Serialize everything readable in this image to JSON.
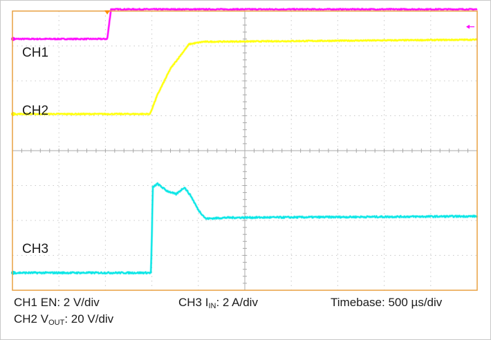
{
  "chart_data": {
    "type": "line",
    "instrument": "oscilloscope",
    "grid": {
      "x_divisions": 10,
      "y_divisions": 8,
      "subdivisions_per_division": 5
    },
    "x": {
      "unit": "µs",
      "per_division": 500,
      "range": [
        0,
        5000
      ]
    },
    "y_unit": "div",
    "y_range": [
      0,
      8
    ],
    "channel_labels": [
      "CH1",
      "CH2",
      "CH3"
    ],
    "series": [
      {
        "name": "CH1",
        "color": "#ff00ff",
        "points": [
          [
            0,
            7.2
          ],
          [
            1020,
            7.2
          ],
          [
            1025,
            7.3
          ],
          [
            1060,
            8.05
          ],
          [
            1080,
            8.05
          ],
          [
            5000,
            8.05
          ]
        ]
      },
      {
        "name": "CH2",
        "color": "#ffff00",
        "points": [
          [
            0,
            5.05
          ],
          [
            1480,
            5.05
          ],
          [
            1560,
            5.6
          ],
          [
            1700,
            6.35
          ],
          [
            1900,
            7.05
          ],
          [
            2050,
            7.12
          ],
          [
            5000,
            7.18
          ]
        ]
      },
      {
        "name": "CH3",
        "color": "#00e5e5",
        "points": [
          [
            0,
            0.5
          ],
          [
            1490,
            0.5
          ],
          [
            1500,
            1.55
          ],
          [
            1510,
            2.95
          ],
          [
            1560,
            3.05
          ],
          [
            1660,
            2.85
          ],
          [
            1760,
            2.75
          ],
          [
            1850,
            2.95
          ],
          [
            1920,
            2.7
          ],
          [
            2000,
            2.3
          ],
          [
            2080,
            2.05
          ],
          [
            2300,
            2.08
          ],
          [
            5000,
            2.12
          ]
        ]
      }
    ],
    "markers": {
      "trigger_arrow_color": "#ff8c00",
      "ground_arrow_color": "#ff00ff"
    }
  },
  "captions": {
    "ch1": "CH1 EN: 2 V/div",
    "ch2_prefix": "CH2 V",
    "ch2_sub": "OUT",
    "ch2_suffix": ": 20 V/div",
    "ch3_prefix": "CH3 I",
    "ch3_sub": "IN",
    "ch3_suffix": ": 2 A/div",
    "timebase": "Timebase: 500 µs/div"
  }
}
